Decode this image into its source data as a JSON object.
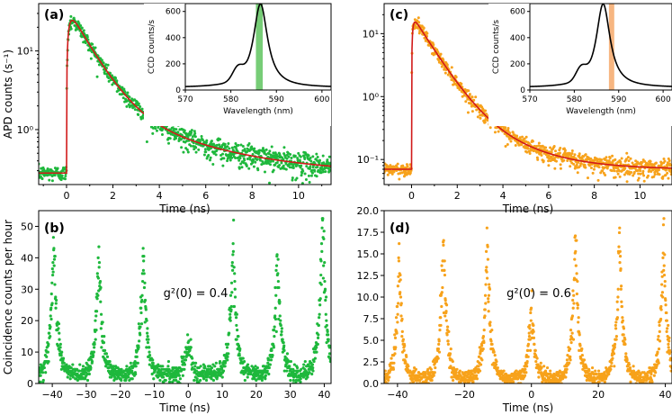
{
  "colors": {
    "green": "#1eb83c",
    "orange": "#f7a21b",
    "fit": "#d11a1a",
    "spectrum": "#000000",
    "bandGreen": "#5fc45f",
    "bandOrange": "#f6a96b"
  },
  "chart_data": [
    {
      "id": "a",
      "panel_label": "(a)",
      "type": "scatter",
      "yscale": "log",
      "xlabel": "Time (ns)",
      "ylabel": "APD counts (s⁻¹)",
      "xlim": [
        -1.2,
        11.4
      ],
      "ylim": [
        0.2,
        40
      ],
      "xticks": [
        0,
        2,
        4,
        6,
        8,
        10
      ],
      "yticks": [
        {
          "v": 1,
          "label": "10⁰"
        },
        {
          "v": 10,
          "label": "10¹"
        }
      ],
      "color_key": "green",
      "decay": {
        "t0": 0.0,
        "rise": 0.12,
        "amp": 35,
        "tau1": 0.8,
        "amp2": 2.2,
        "tau2": 3.2,
        "bg": 0.28
      },
      "inset": {
        "xlabel": "Wavelength (nm)",
        "ylabel": "CCD counts/s",
        "xlim": [
          570,
          602
        ],
        "ylim": [
          0,
          660
        ],
        "xticks": [
          570,
          580,
          590,
          600
        ],
        "yticks": [
          0,
          200,
          400,
          600
        ],
        "peak": 586.5,
        "peak_height": 640,
        "band": [
          585.5,
          587.0
        ],
        "band_color_key": "bandGreen"
      }
    },
    {
      "id": "c",
      "panel_label": "(c)",
      "type": "scatter",
      "yscale": "log",
      "xlabel": "Time (ns)",
      "ylabel": "",
      "xlim": [
        -1.2,
        11.4
      ],
      "ylim": [
        0.04,
        30
      ],
      "xticks": [
        0,
        2,
        4,
        6,
        8,
        10
      ],
      "yticks": [
        {
          "v": 0.1,
          "label": "10⁻¹"
        },
        {
          "v": 1,
          "label": "10⁰"
        },
        {
          "v": 10,
          "label": "10¹"
        }
      ],
      "color_key": "orange",
      "decay": {
        "t0": 0.0,
        "rise": 0.06,
        "amp": 19,
        "tau1": 0.72,
        "amp2": 1.2,
        "tau2": 1.9,
        "bg": 0.07
      },
      "inset": {
        "xlabel": "Wavelength (nm)",
        "ylabel": "CCD counts/s",
        "xlim": [
          570,
          602
        ],
        "ylim": [
          0,
          660
        ],
        "xticks": [
          570,
          580,
          590,
          600
        ],
        "yticks": [
          0,
          200,
          400,
          600
        ],
        "peak": 586.5,
        "peak_height": 640,
        "band": [
          587.8,
          589.0
        ],
        "band_color_key": "bandOrange"
      }
    },
    {
      "id": "b",
      "panel_label": "(b)",
      "type": "scatter",
      "xlabel": "Time (ns)",
      "ylabel": "Coincidence counts per hour",
      "xlim": [
        -44,
        42
      ],
      "ylim": [
        0,
        55
      ],
      "xticks": [
        -40,
        -30,
        -20,
        -10,
        0,
        10,
        20,
        30,
        40
      ],
      "yticks": [
        0,
        10,
        20,
        30,
        40,
        50
      ],
      "color_key": "green",
      "annotation": "g²(0) = 0.4",
      "baseline": 3,
      "peaks": [
        {
          "t": -39.5,
          "h": 45
        },
        {
          "t": -26.3,
          "h": 40
        },
        {
          "t": -13.2,
          "h": 40
        },
        {
          "t": 0,
          "h": 15
        },
        {
          "t": 13.2,
          "h": 43
        },
        {
          "t": 26.3,
          "h": 40
        },
        {
          "t": 39.5,
          "h": 52
        }
      ]
    },
    {
      "id": "d",
      "panel_label": "(d)",
      "type": "scatter",
      "xlabel": "Time (ns)",
      "ylabel": "",
      "xlim": [
        -44,
        42
      ],
      "ylim": [
        0,
        20
      ],
      "xticks": [
        -40,
        -20,
        0,
        20,
        40
      ],
      "yticks": [
        0,
        2.5,
        5.0,
        7.5,
        10.0,
        12.5,
        15.0,
        17.5,
        20.0
      ],
      "ytick_labels": [
        "0.0",
        "2.5",
        "5.0",
        "7.5",
        "10.0",
        "12.5",
        "15.0",
        "17.5",
        "20.0"
      ],
      "color_key": "orange",
      "annotation": "g²(0) = 0.6",
      "baseline": 0.6,
      "peaks": [
        {
          "t": -39.5,
          "h": 13.5
        },
        {
          "t": -26.3,
          "h": 16.5
        },
        {
          "t": -13.2,
          "h": 16
        },
        {
          "t": 0,
          "h": 9
        },
        {
          "t": 13.2,
          "h": 16.5
        },
        {
          "t": 26.3,
          "h": 16.5
        },
        {
          "t": 39.5,
          "h": 17
        }
      ]
    }
  ]
}
